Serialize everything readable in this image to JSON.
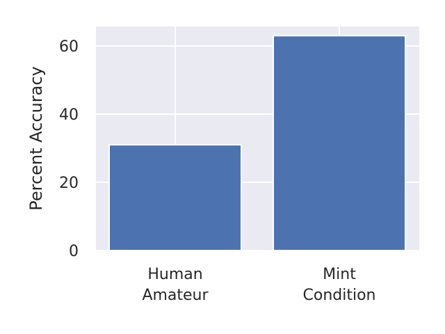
{
  "chart_data": {
    "type": "bar",
    "title": "",
    "xlabel": "",
    "ylabel": "Percent Accuracy",
    "categories": [
      [
        "Human",
        "Amateur"
      ],
      [
        "Mint",
        "Condition"
      ]
    ],
    "values": [
      31,
      63
    ],
    "ylim": [
      0,
      66
    ],
    "yticks": [
      0,
      20,
      40,
      60
    ],
    "grid": true,
    "colors": {
      "bar": "#4c72b0",
      "background": "#eaeaf2",
      "grid": "#ffffff",
      "text": "#262626"
    }
  }
}
